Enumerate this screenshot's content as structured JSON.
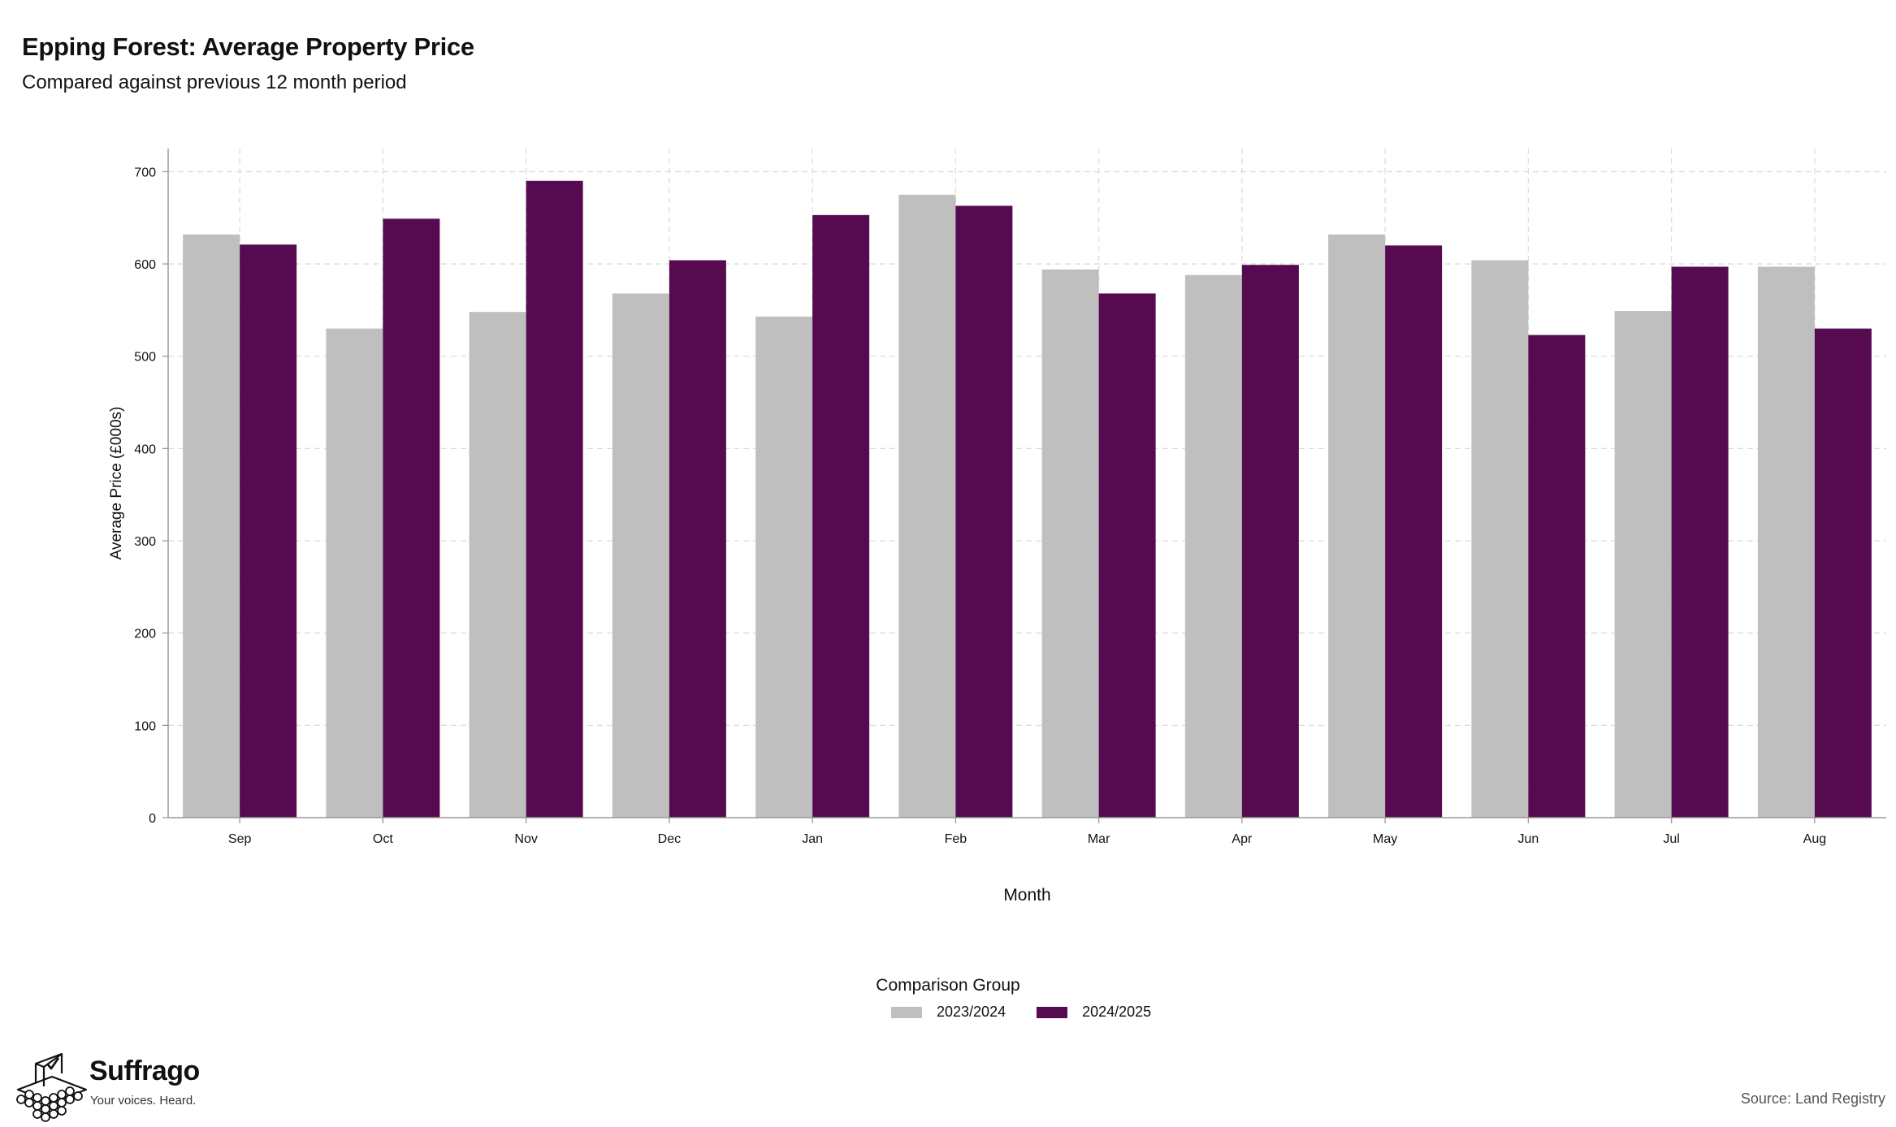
{
  "header": {
    "title": "Epping Forest: Average Property Price",
    "subtitle": "Compared against previous 12 month period"
  },
  "legend": {
    "title": "Comparison Group",
    "items": [
      {
        "label": "2023/2024",
        "color": "#bfbfbf"
      },
      {
        "label": "2024/2025",
        "color": "#560b51"
      }
    ]
  },
  "footer": {
    "brand": "Suffrago",
    "tagline": "Your voices. Heard.",
    "source": "Source: Land Registry"
  },
  "chart_data": {
    "type": "bar",
    "xlabel": "Month",
    "ylabel": "Average Price (£000s)",
    "ylim": [
      0,
      725
    ],
    "yticks": [
      0,
      100,
      200,
      300,
      400,
      500,
      600,
      700
    ],
    "grid": true,
    "legend_position": "bottom",
    "categories": [
      "Sep",
      "Oct",
      "Nov",
      "Dec",
      "Jan",
      "Feb",
      "Mar",
      "Apr",
      "May",
      "Jun",
      "Jul",
      "Aug"
    ],
    "series": [
      {
        "name": "2023/2024",
        "color": "#bfbfbf",
        "values": [
          632,
          530,
          548,
          568,
          543,
          675,
          594,
          588,
          632,
          604,
          549,
          597
        ]
      },
      {
        "name": "2024/2025",
        "color": "#560b51",
        "values": [
          621,
          649,
          690,
          604,
          653,
          663,
          568,
          599,
          620,
          523,
          597,
          530
        ]
      }
    ]
  }
}
